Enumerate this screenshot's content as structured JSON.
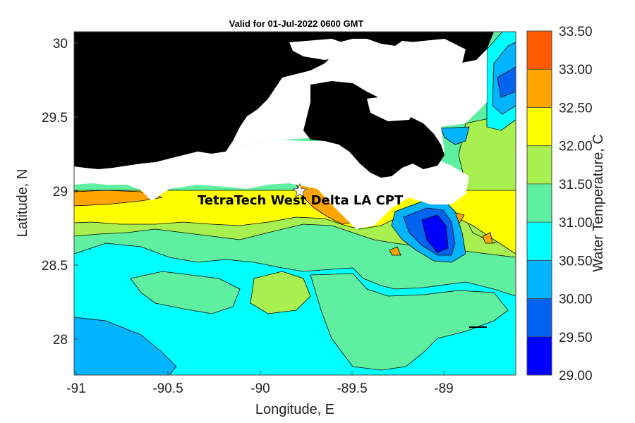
{
  "title": "Valid for 01-Jul-2022 0600 GMT",
  "xlabel": "Longitude, E",
  "ylabel": "Latitude, N",
  "site_label": "TetraTech West Delta LA CPT",
  "site_marker": "star-icon",
  "colorbar_label": "Water Temperature, C",
  "x_ticks": [
    "-91",
    "-90.5",
    "-90",
    "-89.5",
    "-89"
  ],
  "y_ticks": [
    "30",
    "29.5",
    "29",
    "28.5",
    "28"
  ],
  "colorbar_ticks": [
    "33.50",
    "33.00",
    "32.50",
    "32.00",
    "31.50",
    "31.00",
    "30.50",
    "30.00",
    "29.50",
    "29.00"
  ],
  "colorbar_colors": [
    "#ff5a00",
    "#ffa500",
    "#ffff00",
    "#a8f050",
    "#5ef0a0",
    "#00ffff",
    "#00b4ff",
    "#0064f0",
    "#0000ff"
  ],
  "land_color": "#000000",
  "chart_data": {
    "type": "heatmap",
    "title": "Valid for 01-Jul-2022 0600 GMT",
    "xlabel": "Longitude, E",
    "ylabel": "Latitude, N",
    "xlim": [
      -91.0,
      -88.6
    ],
    "ylim": [
      27.75,
      30.05
    ],
    "colorbar": {
      "label": "Water Temperature, C",
      "range": [
        29.0,
        33.5
      ],
      "step": 0.5
    },
    "site": {
      "name": "TetraTech West Delta LA CPT",
      "lon": -89.77,
      "lat": 29.0
    }
  }
}
